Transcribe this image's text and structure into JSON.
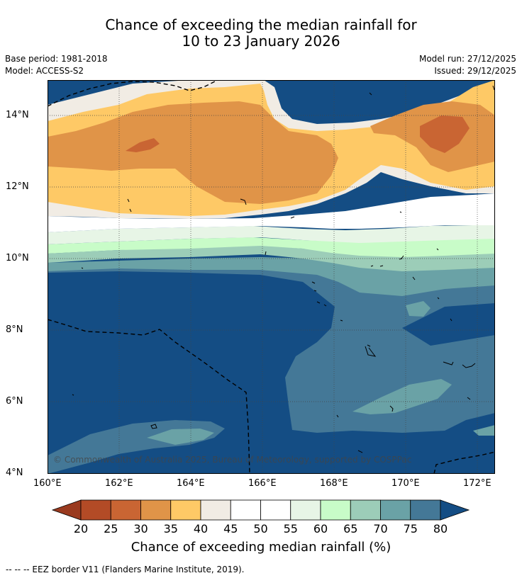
{
  "title": {
    "line1": "Chance of exceeding the median rainfall for",
    "line2": "10 to 23 January 2026"
  },
  "meta": {
    "base_period": "Base period: 1981-2018",
    "model": "Model: ACCESS-S2",
    "model_run": "Model run: 27/12/2025",
    "issued": "Issued: 29/12/2025"
  },
  "map": {
    "x_ticks": [
      "160°E",
      "162°E",
      "164°E",
      "166°E",
      "168°E",
      "170°E",
      "172°E"
    ],
    "y_ticks": [
      "14°N",
      "12°N",
      "10°N",
      "8°N",
      "6°N",
      "4°N"
    ],
    "copyright": "© Commonwealth of Australia 2025, Bureau of Meteorology, supported by COSPPac"
  },
  "colorbar": {
    "title": "Chance of exceeding median rainfall (%)",
    "ticks": [
      "20",
      "25",
      "30",
      "35",
      "40",
      "45",
      "50",
      "55",
      "60",
      "65",
      "70",
      "75",
      "80"
    ],
    "colors": {
      "under": "#9a3a1f",
      "c20_25": "#b34b26",
      "c25_30": "#c96533",
      "c30_35": "#e09448",
      "c35_40": "#fec966",
      "c40_45": "#f1ece4",
      "c45_50": "#ffffff",
      "c50_55": "#ffffff",
      "c55_60": "#e7f5e6",
      "c60_65": "#c8fcc8",
      "c65_70": "#9ccdb8",
      "c70_75": "#6aa2a6",
      "c75_80": "#447897",
      "over": "#144d84"
    }
  },
  "footer": {
    "legend": "--  --  -- EEZ border V11 (Flanders Marine Institute, 2019)."
  }
}
